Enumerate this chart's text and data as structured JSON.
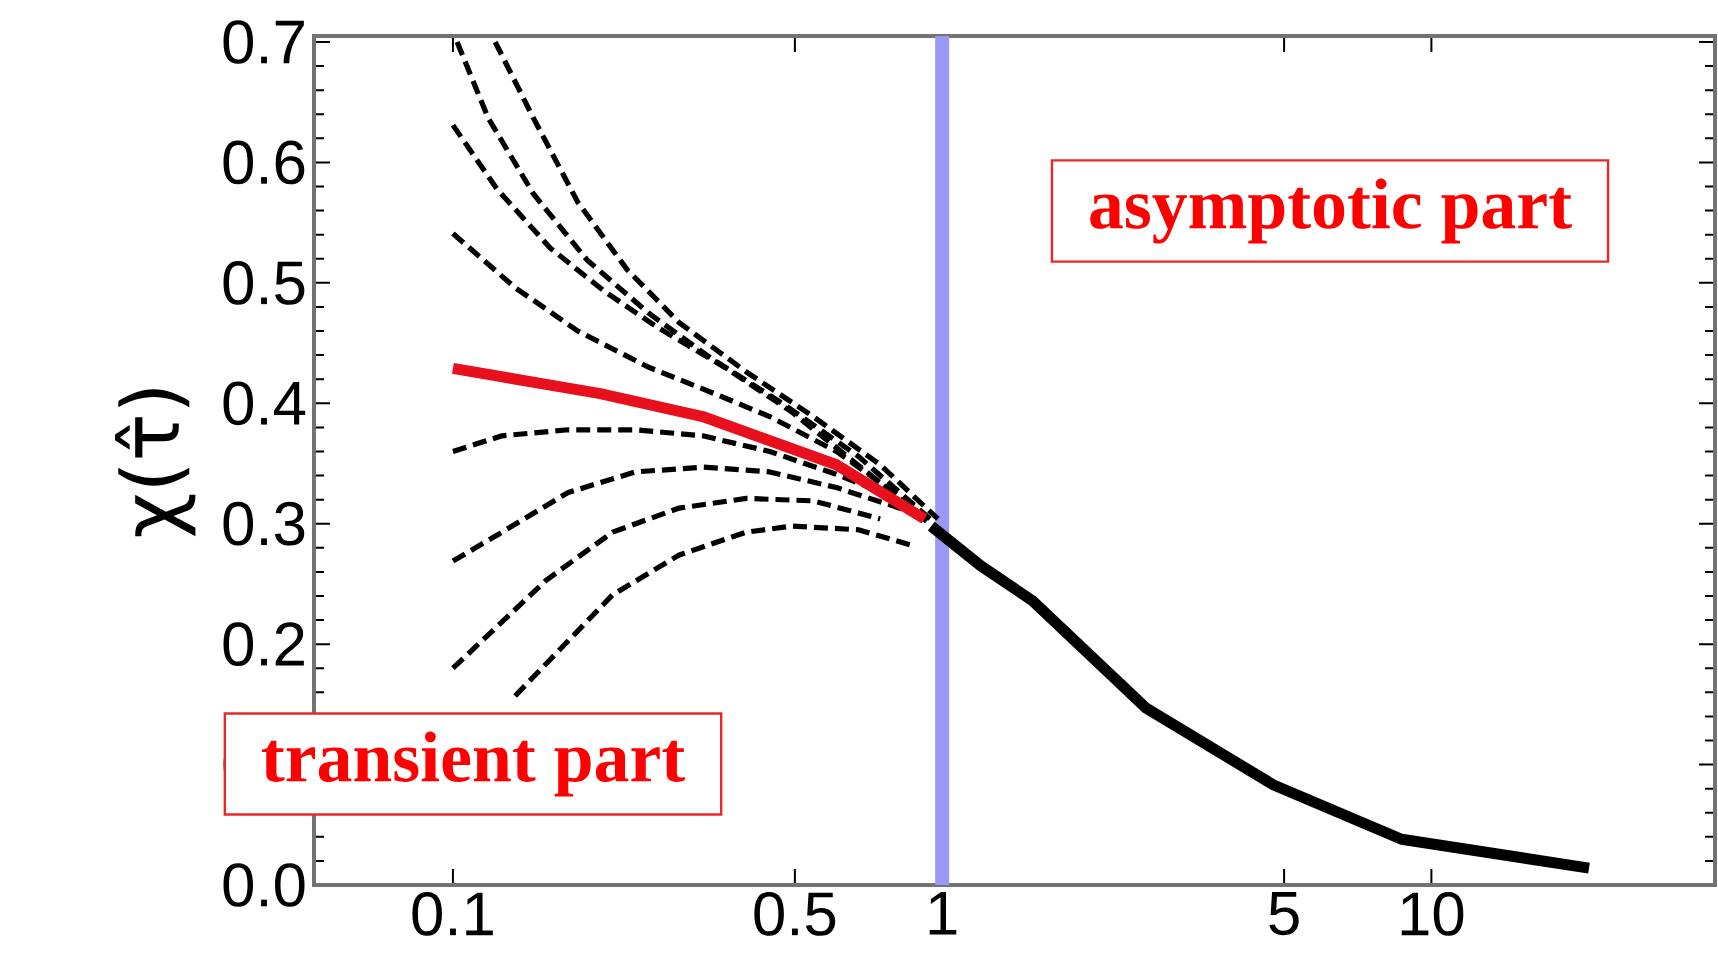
{
  "chart_data": {
    "type": "line",
    "ylabel": "χ(τ̂)",
    "log": "x",
    "xlim": [
      0.052,
      38
    ],
    "ylim": [
      0,
      0.705
    ],
    "xticks": [
      0.1,
      0.5,
      1,
      5,
      10
    ],
    "yticks": [
      {
        "value": 0,
        "label": "0.0"
      },
      0.1,
      0.2,
      0.3,
      0.4,
      0.5,
      0.6,
      0.7
    ],
    "marker": "none",
    "ref_lines": [
      {
        "axis": "x",
        "value": 1,
        "color": "#9999f5"
      }
    ],
    "annotations": [
      "asymptotic part",
      "transient part"
    ],
    "series": [
      {
        "color": "#e8101c",
        "line_style": "solid",
        "x": [
          0.1,
          0.2,
          0.324,
          0.608,
          0.92
        ],
        "values": [
          0.429,
          0.408,
          0.389,
          0.349,
          0.304
        ]
      },
      {
        "color": "#000000",
        "line_style": "solid",
        "x": [
          0.95,
          1.2,
          1.53,
          2.61,
          4.76,
          8.69,
          21
        ],
        "values": [
          0.298,
          0.265,
          0.236,
          0.147,
          0.083,
          0.038,
          0.014
        ]
      },
      {
        "color": "#000000",
        "line_style": "dashed",
        "x": [
          0.102,
          0.118,
          0.146,
          0.188,
          0.251,
          0.338,
          0.471,
          0.674,
          0.963
        ],
        "values": [
          0.7,
          0.637,
          0.574,
          0.519,
          0.475,
          0.437,
          0.4,
          0.356,
          0.301
        ]
      },
      {
        "color": "#000000",
        "line_style": "dashed",
        "x": [
          0.122,
          0.146,
          0.18,
          0.227,
          0.29,
          0.398,
          0.545,
          0.747,
          0.98
        ],
        "values": [
          0.7,
          0.637,
          0.567,
          0.511,
          0.467,
          0.426,
          0.389,
          0.349,
          0.304
        ]
      },
      {
        "color": "#000000",
        "line_style": "dashed",
        "x": [
          0.1,
          0.123,
          0.158,
          0.204,
          0.262,
          0.359,
          0.492,
          0.747,
          0.963
        ],
        "values": [
          0.631,
          0.578,
          0.529,
          0.493,
          0.463,
          0.43,
          0.393,
          0.334,
          0.297
        ]
      },
      {
        "color": "#000000",
        "line_style": "dashed",
        "x": [
          0.1,
          0.134,
          0.18,
          0.251,
          0.324,
          0.444,
          0.608,
          0.92
        ],
        "values": [
          0.541,
          0.496,
          0.46,
          0.43,
          0.412,
          0.389,
          0.36,
          0.308
        ]
      },
      {
        "color": "#000000",
        "line_style": "dashed",
        "x": [
          0.1,
          0.126,
          0.172,
          0.236,
          0.324,
          0.444,
          0.608,
          0.833
        ],
        "values": [
          0.36,
          0.373,
          0.378,
          0.378,
          0.373,
          0.36,
          0.341,
          0.319
        ]
      },
      {
        "color": "#000000",
        "line_style": "dashed",
        "x": [
          0.1,
          0.126,
          0.172,
          0.236,
          0.324,
          0.444,
          0.608,
          0.833
        ],
        "values": [
          0.269,
          0.293,
          0.326,
          0.343,
          0.347,
          0.343,
          0.33,
          0.312
        ]
      },
      {
        "color": "#000000",
        "line_style": "dashed",
        "x": [
          0.1,
          0.155,
          0.212,
          0.29,
          0.398,
          0.545,
          0.747
        ],
        "values": [
          0.18,
          0.253,
          0.293,
          0.313,
          0.321,
          0.319,
          0.304
        ]
      },
      {
        "color": "#000000",
        "line_style": "dashed",
        "x": [
          0.134,
          0.212,
          0.29,
          0.398,
          0.492,
          0.674,
          0.868
        ],
        "values": [
          0.157,
          0.241,
          0.274,
          0.293,
          0.298,
          0.295,
          0.282
        ]
      }
    ]
  }
}
